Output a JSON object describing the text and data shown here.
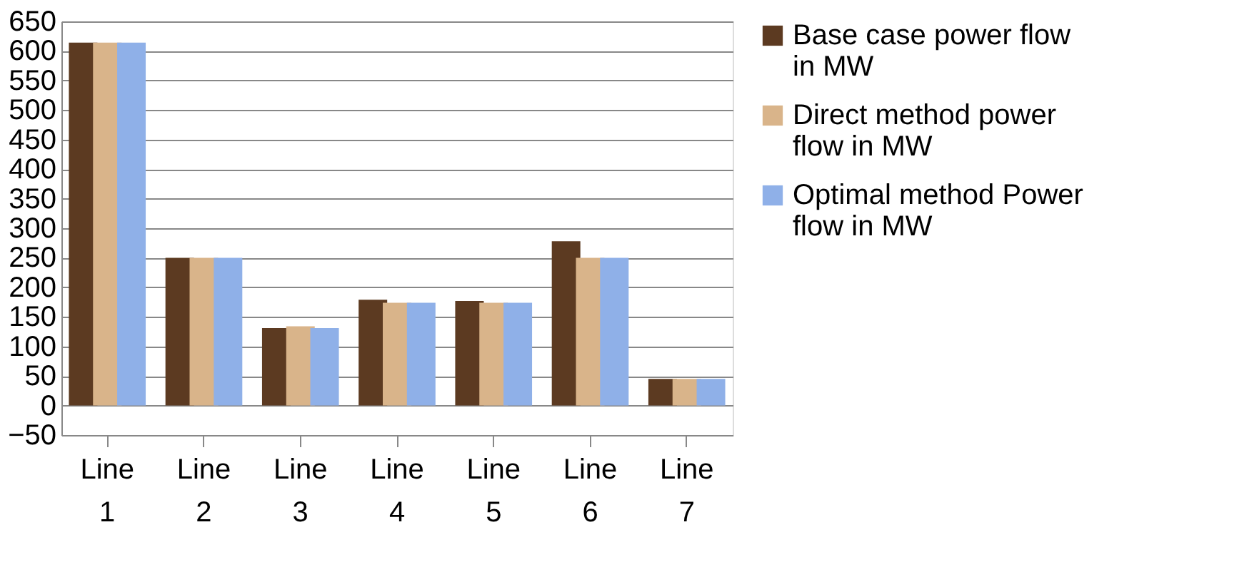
{
  "chart_data": {
    "type": "bar",
    "categories": [
      "Line 1",
      "Line 2",
      "Line 3",
      "Line 4",
      "Line 5",
      "Line 6",
      "Line 7"
    ],
    "series": [
      {
        "name": "Base case power flow in MW",
        "color": "#5c3a21",
        "values": [
          614,
          250,
          131,
          179,
          177,
          278,
          45
        ]
      },
      {
        "name": "Direct method power flow in MW",
        "color": "#d9b48a",
        "values": [
          614,
          250,
          134,
          174,
          174,
          250,
          45
        ]
      },
      {
        "name": "Optimal method Power flow in MW",
        "color": "#8fb0e8",
        "values": [
          614,
          250,
          131,
          174,
          174,
          250,
          45
        ]
      }
    ],
    "ylim": [
      -50,
      650
    ],
    "yticks": [
      -50,
      0,
      50,
      100,
      150,
      200,
      250,
      300,
      350,
      400,
      450,
      500,
      550,
      600,
      650
    ],
    "grid": "y",
    "legend": "right"
  }
}
